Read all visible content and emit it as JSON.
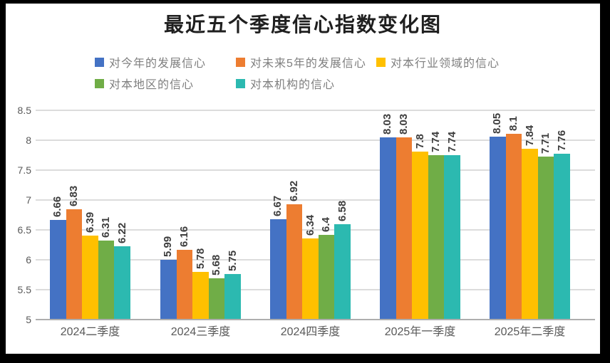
{
  "frame": {
    "background_color": "#000000",
    "surface_color": "#ffffff"
  },
  "chart_data": {
    "type": "bar",
    "title": "最近五个季度信心指数变化图",
    "categories": [
      "2024二季度",
      "2024三季度",
      "2024四季度",
      "2025年一季度",
      "2025年二季度"
    ],
    "series": [
      {
        "name": "对今年的发展信心",
        "color": "#4472c4",
        "values": [
          6.66,
          5.99,
          6.67,
          8.03,
          8.05
        ]
      },
      {
        "name": "对未来5年的发展信心",
        "color": "#ed7d31",
        "values": [
          6.83,
          6.16,
          6.92,
          8.03,
          8.1
        ]
      },
      {
        "name": "对本行业领域的信心",
        "color": "#ffc000",
        "values": [
          6.39,
          5.78,
          6.34,
          7.8,
          7.84
        ]
      },
      {
        "name": "对本地区的信心",
        "color": "#70ad47",
        "values": [
          6.31,
          5.68,
          6.4,
          7.74,
          7.71
        ]
      },
      {
        "name": "对本机构的信心",
        "color": "#2cb9b0",
        "values": [
          6.22,
          5.75,
          6.58,
          7.74,
          7.76
        ]
      }
    ],
    "xlabel": "",
    "ylabel": "",
    "ylim": [
      5,
      8.5
    ],
    "ytick_labels": [
      "8.5",
      "8",
      "7.5",
      "7",
      "6.5",
      "6",
      "5.5",
      "5"
    ],
    "grid": true,
    "legend_position": "top",
    "legend_rows": [
      [
        0,
        1,
        2
      ],
      [
        3,
        4
      ]
    ],
    "data_labels": "rotated-90-above-bars"
  }
}
